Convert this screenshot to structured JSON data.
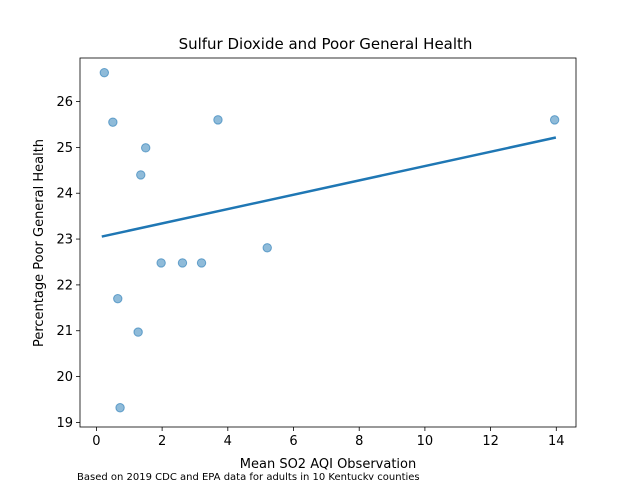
{
  "chart_data": {
    "type": "scatter",
    "title": "Sulfur Dioxide and Poor General Health",
    "xlabel": "Mean SO2 AQI Observation",
    "ylabel": "Percentage Poor General Health",
    "footnote": "Based on 2019 CDC and EPA data for adults in 10 Kentucky counties",
    "xlim": [
      -0.5,
      14.6
    ],
    "ylim": [
      18.9,
      26.95
    ],
    "xticks": [
      0,
      2,
      4,
      6,
      8,
      10,
      12,
      14
    ],
    "yticks": [
      19,
      20,
      21,
      22,
      23,
      24,
      25,
      26
    ],
    "grid": false,
    "points": [
      {
        "x": 0.24,
        "y": 26.63
      },
      {
        "x": 0.5,
        "y": 25.55
      },
      {
        "x": 0.65,
        "y": 21.7
      },
      {
        "x": 0.72,
        "y": 19.32
      },
      {
        "x": 1.27,
        "y": 20.97
      },
      {
        "x": 1.35,
        "y": 24.4
      },
      {
        "x": 1.5,
        "y": 24.99
      },
      {
        "x": 1.97,
        "y": 22.48
      },
      {
        "x": 2.62,
        "y": 22.48
      },
      {
        "x": 3.2,
        "y": 22.48
      },
      {
        "x": 3.7,
        "y": 25.6
      },
      {
        "x": 5.2,
        "y": 22.81
      },
      {
        "x": 13.95,
        "y": 25.6
      }
    ],
    "trendline": {
      "x": [
        0.2,
        13.95
      ],
      "y": [
        23.06,
        25.21
      ]
    },
    "colors": {
      "points": "#1f77b4",
      "line": "#1f77b4"
    }
  }
}
